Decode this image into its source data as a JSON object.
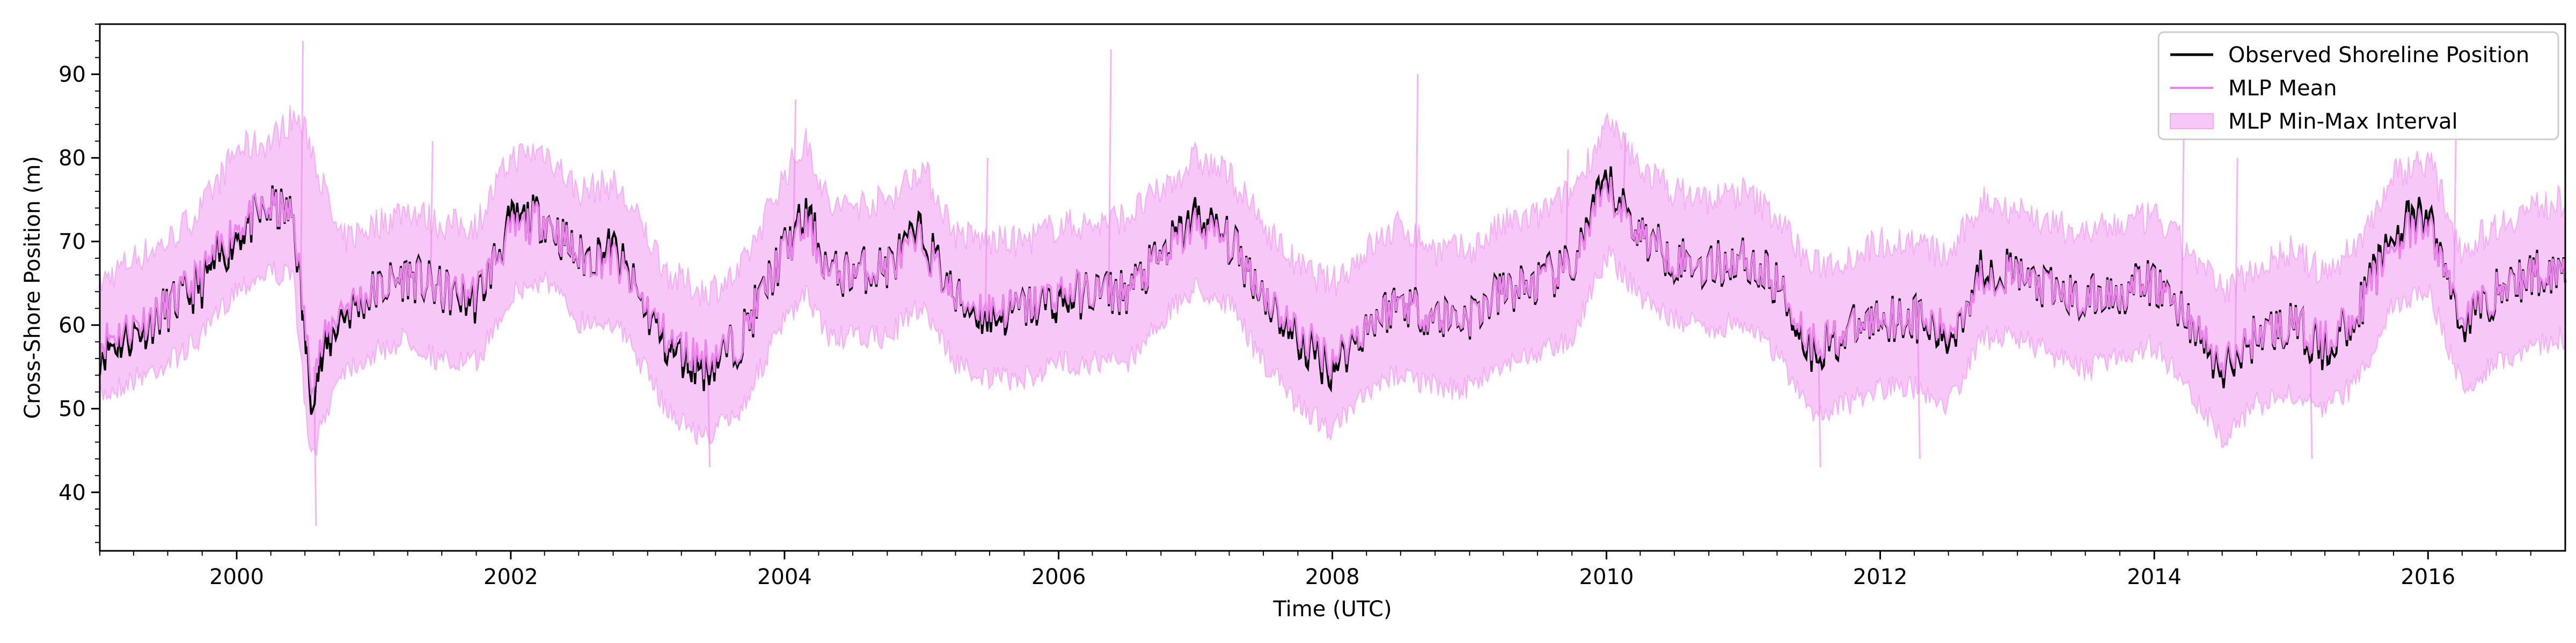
{
  "chart_data": {
    "type": "line",
    "title": "",
    "xlabel": "Time (UTC)",
    "ylabel": "Cross-Shore Position (m)",
    "xlim": [
      "1999-01-01",
      "2017-01-01"
    ],
    "ylim": [
      33,
      96
    ],
    "x_ticks": [
      "2000",
      "2002",
      "2004",
      "2006",
      "2008",
      "2010",
      "2012",
      "2014",
      "2016"
    ],
    "y_ticks": [
      "40",
      "50",
      "60",
      "70",
      "80",
      "90"
    ],
    "grid": false,
    "legend_position": "top-right",
    "colors": {
      "observed": "#000000",
      "mlp_mean": "#ee82ee",
      "mlp_interval": "#ee82ee"
    },
    "series": [
      {
        "name": "Observed Shoreline Position",
        "kind": "line",
        "points": [
          [
            "1999-01-01",
            57
          ],
          [
            "1999-04-01",
            59
          ],
          [
            "1999-07-01",
            62
          ],
          [
            "1999-10-01",
            65
          ],
          [
            "2000-01-01",
            71
          ],
          [
            "2000-04-01",
            74
          ],
          [
            "2000-06-01",
            73
          ],
          [
            "2000-07-15",
            52
          ],
          [
            "2000-10-01",
            61
          ],
          [
            "2001-01-01",
            64
          ],
          [
            "2001-04-01",
            66
          ],
          [
            "2001-07-01",
            64
          ],
          [
            "2001-10-01",
            63
          ],
          [
            "2002-01-01",
            72
          ],
          [
            "2002-04-01",
            73
          ],
          [
            "2002-07-01",
            68
          ],
          [
            "2002-10-01",
            69
          ],
          [
            "2002-12-01",
            64
          ],
          [
            "2003-03-01",
            57
          ],
          [
            "2003-06-01",
            55
          ],
          [
            "2003-09-01",
            58
          ],
          [
            "2004-01-01",
            69
          ],
          [
            "2004-03-01",
            73
          ],
          [
            "2004-05-01",
            66
          ],
          [
            "2004-10-01",
            67
          ],
          [
            "2005-01-01",
            71
          ],
          [
            "2005-04-01",
            63
          ],
          [
            "2005-07-01",
            61
          ],
          [
            "2005-10-01",
            62
          ],
          [
            "2006-01-01",
            63
          ],
          [
            "2006-04-01",
            64
          ],
          [
            "2006-07-01",
            64
          ],
          [
            "2006-10-01",
            68
          ],
          [
            "2007-01-01",
            73
          ],
          [
            "2007-04-01",
            70
          ],
          [
            "2007-07-01",
            64
          ],
          [
            "2007-10-01",
            58
          ],
          [
            "2008-01-01",
            55
          ],
          [
            "2008-04-01",
            60
          ],
          [
            "2008-07-01",
            63
          ],
          [
            "2008-10-01",
            61
          ],
          [
            "2009-01-01",
            61
          ],
          [
            "2009-04-01",
            64
          ],
          [
            "2009-07-01",
            65
          ],
          [
            "2009-10-01",
            67
          ],
          [
            "2010-01-01",
            77
          ],
          [
            "2010-04-01",
            71
          ],
          [
            "2010-07-01",
            68
          ],
          [
            "2010-10-01",
            67
          ],
          [
            "2011-01-01",
            68
          ],
          [
            "2011-04-01",
            65
          ],
          [
            "2011-07-01",
            57
          ],
          [
            "2011-10-01",
            59
          ],
          [
            "2012-01-01",
            61
          ],
          [
            "2012-04-01",
            61
          ],
          [
            "2012-07-01",
            58
          ],
          [
            "2012-10-01",
            67
          ],
          [
            "2013-01-01",
            66
          ],
          [
            "2013-04-01",
            64
          ],
          [
            "2013-07-01",
            63
          ],
          [
            "2013-10-01",
            64
          ],
          [
            "2014-01-01",
            65
          ],
          [
            "2014-04-01",
            61
          ],
          [
            "2014-07-01",
            54
          ],
          [
            "2014-10-01",
            59
          ],
          [
            "2015-01-01",
            60
          ],
          [
            "2015-04-01",
            57
          ],
          [
            "2015-07-01",
            62
          ],
          [
            "2015-10-01",
            71
          ],
          [
            "2016-01-01",
            73
          ],
          [
            "2016-04-01",
            60
          ],
          [
            "2016-07-01",
            64
          ],
          [
            "2016-10-01",
            66
          ],
          [
            "2017-01-01",
            67
          ]
        ]
      },
      {
        "name": "MLP Mean",
        "kind": "line",
        "points": [
          [
            "1999-01-01",
            58
          ],
          [
            "1999-04-01",
            60
          ],
          [
            "1999-07-01",
            62
          ],
          [
            "1999-10-01",
            66
          ],
          [
            "2000-01-01",
            72
          ],
          [
            "2000-04-01",
            74
          ],
          [
            "2000-06-01",
            73
          ],
          [
            "2000-07-15",
            54
          ],
          [
            "2000-10-01",
            62
          ],
          [
            "2001-01-01",
            64
          ],
          [
            "2001-04-01",
            66
          ],
          [
            "2001-07-01",
            64
          ],
          [
            "2001-10-01",
            64
          ],
          [
            "2002-01-01",
            71
          ],
          [
            "2002-04-01",
            73
          ],
          [
            "2002-07-01",
            68
          ],
          [
            "2002-10-01",
            68
          ],
          [
            "2002-12-01",
            64
          ],
          [
            "2003-03-01",
            58
          ],
          [
            "2003-06-01",
            56
          ],
          [
            "2003-09-01",
            58
          ],
          [
            "2004-01-01",
            69
          ],
          [
            "2004-03-01",
            72
          ],
          [
            "2004-05-01",
            66
          ],
          [
            "2004-10-01",
            67
          ],
          [
            "2005-01-01",
            70
          ],
          [
            "2005-04-01",
            63
          ],
          [
            "2005-07-01",
            62
          ],
          [
            "2005-10-01",
            62
          ],
          [
            "2006-01-01",
            64
          ],
          [
            "2006-04-01",
            64
          ],
          [
            "2006-07-01",
            64
          ],
          [
            "2006-10-01",
            68
          ],
          [
            "2007-01-01",
            72
          ],
          [
            "2007-04-01",
            70
          ],
          [
            "2007-07-01",
            64
          ],
          [
            "2007-10-01",
            59
          ],
          [
            "2008-01-01",
            56
          ],
          [
            "2008-04-01",
            60
          ],
          [
            "2008-07-01",
            63
          ],
          [
            "2008-10-01",
            61
          ],
          [
            "2009-01-01",
            61
          ],
          [
            "2009-04-01",
            64
          ],
          [
            "2009-07-01",
            65
          ],
          [
            "2009-10-01",
            67
          ],
          [
            "2010-01-01",
            76
          ],
          [
            "2010-04-01",
            71
          ],
          [
            "2010-07-01",
            68
          ],
          [
            "2010-10-01",
            67
          ],
          [
            "2011-01-01",
            68
          ],
          [
            "2011-04-01",
            65
          ],
          [
            "2011-07-01",
            58
          ],
          [
            "2011-10-01",
            59
          ],
          [
            "2012-01-01",
            61
          ],
          [
            "2012-04-01",
            61
          ],
          [
            "2012-07-01",
            59
          ],
          [
            "2012-10-01",
            66
          ],
          [
            "2013-01-01",
            66
          ],
          [
            "2013-04-01",
            64
          ],
          [
            "2013-07-01",
            63
          ],
          [
            "2013-10-01",
            64
          ],
          [
            "2014-01-01",
            65
          ],
          [
            "2014-04-01",
            61
          ],
          [
            "2014-07-01",
            55
          ],
          [
            "2014-10-01",
            59
          ],
          [
            "2015-01-01",
            60
          ],
          [
            "2015-04-01",
            58
          ],
          [
            "2015-07-01",
            62
          ],
          [
            "2015-10-01",
            70
          ],
          [
            "2016-01-01",
            72
          ],
          [
            "2016-04-01",
            61
          ],
          [
            "2016-07-01",
            64
          ],
          [
            "2016-10-01",
            66
          ],
          [
            "2017-01-01",
            67
          ]
        ]
      },
      {
        "name": "MLP Min-Max Interval",
        "kind": "band",
        "points": [
          [
            "1999-01-01",
            53,
            63
          ],
          [
            "1999-04-01",
            55,
            66
          ],
          [
            "1999-07-01",
            57,
            68
          ],
          [
            "1999-10-01",
            60,
            72
          ],
          [
            "2000-01-01",
            66,
            79
          ],
          [
            "2000-04-01",
            68,
            80
          ],
          [
            "2000-06-01",
            67,
            83
          ],
          [
            "2000-07-15",
            45,
            80
          ],
          [
            "2000-10-01",
            56,
            68
          ],
          [
            "2001-01-01",
            58,
            70
          ],
          [
            "2001-04-01",
            60,
            72
          ],
          [
            "2001-07-01",
            57,
            70
          ],
          [
            "2001-10-01",
            57,
            70
          ],
          [
            "2002-01-01",
            65,
            78
          ],
          [
            "2002-04-01",
            67,
            79
          ],
          [
            "2002-07-01",
            62,
            74
          ],
          [
            "2002-10-01",
            62,
            75
          ],
          [
            "2002-12-01",
            58,
            71
          ],
          [
            "2003-03-01",
            51,
            64
          ],
          [
            "2003-06-01",
            48,
            62
          ],
          [
            "2003-09-01",
            51,
            64
          ],
          [
            "2004-01-01",
            62,
            76
          ],
          [
            "2004-03-01",
            65,
            80
          ],
          [
            "2004-05-01",
            60,
            72
          ],
          [
            "2004-10-01",
            60,
            73
          ],
          [
            "2005-01-01",
            64,
            77
          ],
          [
            "2005-04-01",
            57,
            69
          ],
          [
            "2005-07-01",
            55,
            68
          ],
          [
            "2005-10-01",
            55,
            68
          ],
          [
            "2006-01-01",
            57,
            70
          ],
          [
            "2006-04-01",
            57,
            70
          ],
          [
            "2006-07-01",
            57,
            71
          ],
          [
            "2006-10-01",
            62,
            74
          ],
          [
            "2007-01-01",
            66,
            78
          ],
          [
            "2007-04-01",
            64,
            76
          ],
          [
            "2007-07-01",
            57,
            70
          ],
          [
            "2007-10-01",
            52,
            65
          ],
          [
            "2008-01-01",
            49,
            63
          ],
          [
            "2008-04-01",
            53,
            67
          ],
          [
            "2008-07-01",
            56,
            70
          ],
          [
            "2008-10-01",
            54,
            67
          ],
          [
            "2009-01-01",
            54,
            67
          ],
          [
            "2009-04-01",
            57,
            70
          ],
          [
            "2009-07-01",
            58,
            71
          ],
          [
            "2009-10-01",
            60,
            74
          ],
          [
            "2010-01-01",
            70,
            82
          ],
          [
            "2010-04-01",
            65,
            77
          ],
          [
            "2010-07-01",
            62,
            74
          ],
          [
            "2010-10-01",
            61,
            73
          ],
          [
            "2011-01-01",
            62,
            74
          ],
          [
            "2011-04-01",
            58,
            71
          ],
          [
            "2011-07-01",
            51,
            65
          ],
          [
            "2011-10-01",
            52,
            66
          ],
          [
            "2012-01-01",
            54,
            68
          ],
          [
            "2012-04-01",
            54,
            68
          ],
          [
            "2012-07-01",
            52,
            66
          ],
          [
            "2012-10-01",
            60,
            73
          ],
          [
            "2013-01-01",
            60,
            72
          ],
          [
            "2013-04-01",
            58,
            70
          ],
          [
            "2013-07-01",
            56,
            69
          ],
          [
            "2013-10-01",
            58,
            70
          ],
          [
            "2014-01-01",
            59,
            71
          ],
          [
            "2014-04-01",
            54,
            67
          ],
          [
            "2014-07-01",
            48,
            62
          ],
          [
            "2014-10-01",
            52,
            65
          ],
          [
            "2015-01-01",
            53,
            67
          ],
          [
            "2015-04-01",
            51,
            64
          ],
          [
            "2015-07-01",
            55,
            68
          ],
          [
            "2015-10-01",
            64,
            76
          ],
          [
            "2016-01-01",
            66,
            78
          ],
          [
            "2016-04-01",
            54,
            67
          ],
          [
            "2016-07-01",
            57,
            70
          ],
          [
            "2016-10-01",
            59,
            72
          ],
          [
            "2017-01-01",
            60,
            73
          ]
        ],
        "spikes": [
          [
            "2000-06-20",
            94
          ],
          [
            "2000-07-25",
            36
          ],
          [
            "2001-06-01",
            82
          ],
          [
            "2003-06-10",
            43
          ],
          [
            "2004-01-25",
            87
          ],
          [
            "2005-06-20",
            80
          ],
          [
            "2006-05-15",
            93
          ],
          [
            "2008-08-10",
            90
          ],
          [
            "2009-09-15",
            81
          ],
          [
            "2010-02-15",
            83
          ],
          [
            "2011-07-20",
            43
          ],
          [
            "2012-04-10",
            44
          ],
          [
            "2014-03-15",
            83
          ],
          [
            "2014-08-05",
            80
          ],
          [
            "2015-02-20",
            44
          ],
          [
            "2016-03-10",
            84
          ]
        ]
      }
    ]
  }
}
